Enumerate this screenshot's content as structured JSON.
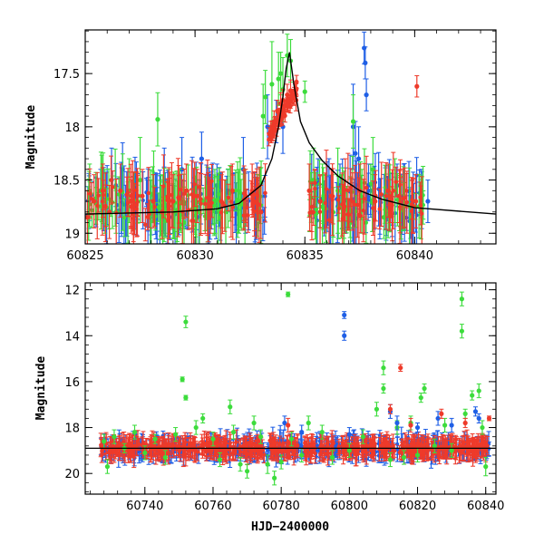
{
  "chart_data": [
    {
      "type": "scatter",
      "panel": "top",
      "title": "",
      "xlabel": "",
      "ylabel": "Magnitude",
      "xlim": [
        60825,
        60843.7
      ],
      "ylim": [
        19.1,
        17.09
      ],
      "y_inverted": true,
      "xticks": [
        60825,
        60830,
        60835,
        60840
      ],
      "yticks": [
        17.5,
        18,
        18.5,
        19
      ],
      "ytick_labels": [
        "17.5",
        "18",
        "18.5",
        "19"
      ],
      "grid": false,
      "series": [
        {
          "color": "#3cdc3c",
          "points": [
            [
              60825.2,
              18.6,
              0.25
            ],
            [
              60825.9,
              18.7,
              0.3
            ],
            [
              60826.4,
              18.8,
              0.2
            ],
            [
              60827.0,
              18.6,
              0.3
            ],
            [
              60827.5,
              18.5,
              0.4
            ],
            [
              60828.0,
              18.8,
              0.3
            ],
            [
              60828.3,
              17.93,
              0.25
            ],
            [
              60828.8,
              18.7,
              0.3
            ],
            [
              60829.5,
              18.9,
              0.2
            ],
            [
              60830.2,
              18.8,
              0.3
            ],
            [
              60830.9,
              18.7,
              0.3
            ],
            [
              60831.4,
              18.8,
              0.3
            ],
            [
              60832.0,
              18.7,
              0.3
            ],
            [
              60833.1,
              17.9,
              0.3
            ],
            [
              60833.2,
              17.72,
              0.25
            ],
            [
              60833.5,
              17.6,
              0.4
            ],
            [
              60833.8,
              17.55,
              0.25
            ],
            [
              60833.9,
              17.5,
              0.2
            ],
            [
              60834.0,
              17.65,
              0.3
            ],
            [
              60834.2,
              17.33,
              0.2
            ],
            [
              60834.35,
              17.38,
              0.2
            ],
            [
              60835.0,
              17.67,
              0.1
            ],
            [
              60835.4,
              18.5,
              0.3
            ],
            [
              60835.8,
              18.75,
              0.4
            ],
            [
              60836.5,
              18.6,
              0.4
            ],
            [
              60837.2,
              17.95,
              0.25
            ],
            [
              60837.6,
              18.7,
              0.3
            ],
            [
              60838.1,
              18.4,
              0.3
            ],
            [
              60838.6,
              18.85,
              0.2
            ],
            [
              60839.1,
              18.6,
              0.3
            ]
          ]
        },
        {
          "color": "#1f5fe6",
          "points": [
            [
              60825.7,
              18.6,
              0.2
            ],
            [
              60826.2,
              18.5,
              0.3
            ],
            [
              60826.7,
              18.4,
              0.25
            ],
            [
              60827.3,
              18.65,
              0.2
            ],
            [
              60828.6,
              18.5,
              0.3
            ],
            [
              60829.4,
              18.4,
              0.3
            ],
            [
              60830.3,
              18.3,
              0.25
            ],
            [
              60831.0,
              18.55,
              0.2
            ],
            [
              60831.5,
              18.6,
              0.2
            ],
            [
              60832.2,
              18.4,
              0.3
            ],
            [
              60832.8,
              18.7,
              0.2
            ],
            [
              60833.3,
              18.0,
              0.3
            ],
            [
              60833.7,
              17.95,
              0.2
            ],
            [
              60834.0,
              18.0,
              0.25
            ],
            [
              60835.6,
              18.5,
              0.2
            ],
            [
              60836.1,
              18.6,
              0.3
            ],
            [
              60836.6,
              18.55,
              0.2
            ],
            [
              60837.2,
              18.0,
              0.4
            ],
            [
              60837.3,
              18.25,
              0.3
            ],
            [
              60837.45,
              18.3,
              0.3
            ],
            [
              60837.7,
              17.26,
              0.15
            ],
            [
              60837.75,
              17.4,
              0.15
            ],
            [
              60837.8,
              17.7,
              0.15
            ],
            [
              60837.9,
              18.55,
              0.2
            ],
            [
              60838.0,
              18.6,
              0.25
            ],
            [
              60839.2,
              18.55,
              0.2
            ],
            [
              60839.5,
              18.65,
              0.3
            ],
            [
              60839.9,
              18.8,
              0.3
            ],
            [
              60840.3,
              18.6,
              0.2
            ],
            [
              60840.6,
              18.7,
              0.2
            ]
          ]
        },
        {
          "color": "#ee3a2a",
          "points": [
            [
              60825.1,
              18.85,
              0.25
            ],
            [
              60825.4,
              18.7,
              0.25
            ],
            [
              60825.8,
              18.6,
              0.25
            ],
            [
              60826.1,
              18.8,
              0.25
            ],
            [
              60826.6,
              18.6,
              0.25
            ],
            [
              60827.1,
              18.75,
              0.25
            ],
            [
              60827.6,
              18.65,
              0.25
            ],
            [
              60828.1,
              18.7,
              0.25
            ],
            [
              60828.5,
              18.8,
              0.25
            ],
            [
              60829.0,
              18.7,
              0.25
            ],
            [
              60829.6,
              18.6,
              0.25
            ],
            [
              60830.1,
              18.65,
              0.25
            ],
            [
              60830.7,
              18.75,
              0.25
            ],
            [
              60831.2,
              18.7,
              0.25
            ],
            [
              60831.7,
              18.6,
              0.25
            ],
            [
              60832.3,
              18.65,
              0.25
            ],
            [
              60832.6,
              18.6,
              0.25
            ],
            [
              60833.0,
              18.8,
              0.25
            ],
            [
              60833.45,
              18.05,
              0.1
            ],
            [
              60833.6,
              17.95,
              0.1
            ],
            [
              60833.75,
              17.85,
              0.1
            ],
            [
              60833.9,
              17.78,
              0.1
            ],
            [
              60834.0,
              17.75,
              0.1
            ],
            [
              60834.2,
              17.7,
              0.1
            ],
            [
              60834.35,
              17.66,
              0.1
            ],
            [
              60834.6,
              17.75,
              0.1
            ],
            [
              60835.2,
              18.6,
              0.25
            ],
            [
              60835.7,
              18.7,
              0.25
            ],
            [
              60836.2,
              18.65,
              0.25
            ],
            [
              60836.8,
              18.75,
              0.25
            ],
            [
              60837.5,
              18.6,
              0.25
            ],
            [
              60838.2,
              18.7,
              0.25
            ],
            [
              60838.8,
              18.6,
              0.25
            ],
            [
              60839.3,
              18.65,
              0.25
            ],
            [
              60840.05,
              18.7,
              0.25
            ],
            [
              60840.1,
              17.62,
              0.1
            ]
          ]
        }
      ],
      "model_curve": {
        "color": "#000000",
        "points": [
          [
            60825,
            18.82
          ],
          [
            60829,
            18.8
          ],
          [
            60831,
            18.77
          ],
          [
            60832,
            18.72
          ],
          [
            60833,
            18.55
          ],
          [
            60833.5,
            18.3
          ],
          [
            60833.8,
            18.0
          ],
          [
            60834.0,
            17.72
          ],
          [
            60834.15,
            17.45
          ],
          [
            60834.3,
            17.3
          ],
          [
            60834.5,
            17.6
          ],
          [
            60834.8,
            17.95
          ],
          [
            60835.2,
            18.15
          ],
          [
            60835.8,
            18.32
          ],
          [
            60836.5,
            18.46
          ],
          [
            60837.5,
            18.6
          ],
          [
            60838.5,
            18.68
          ],
          [
            60840,
            18.76
          ],
          [
            60843.7,
            18.82
          ]
        ]
      }
    },
    {
      "type": "scatter",
      "panel": "bottom",
      "title": "",
      "xlabel": "HJD−2400000",
      "ylabel": "Magnitude",
      "xlim": [
        60722.5,
        60843
      ],
      "ylim": [
        20.9,
        11.7
      ],
      "y_inverted": true,
      "xticks": [
        60740,
        60760,
        60780,
        60800,
        60820,
        60840
      ],
      "yticks": [
        12,
        14,
        16,
        18,
        20
      ],
      "ytick_labels": [
        "12",
        "14",
        "16",
        "18",
        "20"
      ],
      "grid": false,
      "baseline": {
        "y": 18.9,
        "color": "#000000"
      },
      "bands": [
        {
          "color": "#1f5fe6",
          "x_start": 60727,
          "x_end": 60841,
          "y": 18.9,
          "scatter": 0.4
        },
        {
          "color": "#ee3a2a",
          "x_start": 60727,
          "x_end": 60841,
          "y": 18.9,
          "scatter": 0.3
        }
      ],
      "series": [
        {
          "color": "#3cdc3c",
          "points": [
            [
              60728,
              18.6,
              0.3
            ],
            [
              60729,
              19.7,
              0.3
            ],
            [
              60731,
              18.4,
              0.3
            ],
            [
              60734,
              18.9,
              0.2
            ],
            [
              60737,
              18.2,
              0.3
            ],
            [
              60740,
              19.1,
              0.3
            ],
            [
              60743,
              18.5,
              0.2
            ],
            [
              60746,
              19.3,
              0.3
            ],
            [
              60749,
              18.3,
              0.3
            ],
            [
              60751,
              15.9,
              0.1
            ],
            [
              60752,
              13.4,
              0.25
            ],
            [
              60752,
              16.7,
              0.1
            ],
            [
              60755,
              18.0,
              0.3
            ],
            [
              60757,
              17.6,
              0.2
            ],
            [
              60760,
              18.5,
              0.3
            ],
            [
              60762,
              19.4,
              0.3
            ],
            [
              60765,
              17.1,
              0.3
            ],
            [
              60766,
              18.2,
              0.3
            ],
            [
              60768,
              19.6,
              0.3
            ],
            [
              60770,
              19.9,
              0.3
            ],
            [
              60772,
              17.8,
              0.3
            ],
            [
              60774,
              18.4,
              0.3
            ],
            [
              60776,
              19.6,
              0.4
            ],
            [
              60778,
              20.2,
              0.3
            ],
            [
              60780,
              19.5,
              0.3
            ],
            [
              60782,
              12.2,
              0.1
            ],
            [
              60783,
              18.5,
              0.3
            ],
            [
              60786,
              19.2,
              0.3
            ],
            [
              60788,
              17.8,
              0.3
            ],
            [
              60792,
              18.2,
              0.3
            ],
            [
              60795,
              19.3,
              0.3
            ],
            [
              60800,
              19.0,
              0.3
            ],
            [
              60804,
              18.4,
              0.3
            ],
            [
              60808,
              17.2,
              0.3
            ],
            [
              60810,
              15.4,
              0.3
            ],
            [
              60810,
              16.3,
              0.2
            ],
            [
              60812,
              19.4,
              0.3
            ],
            [
              60814,
              18.0,
              0.3
            ],
            [
              60816,
              19.3,
              0.3
            ],
            [
              60818,
              17.8,
              0.3
            ],
            [
              60820,
              19.2,
              0.3
            ],
            [
              60821,
              16.7,
              0.2
            ],
            [
              60822,
              16.3,
              0.2
            ],
            [
              60825,
              18.8,
              0.3
            ],
            [
              60828,
              17.9,
              0.3
            ],
            [
              60830,
              19.0,
              0.3
            ],
            [
              60833,
              12.4,
              0.3
            ],
            [
              60833,
              13.8,
              0.3
            ],
            [
              60834,
              17.4,
              0.2
            ],
            [
              60836,
              16.6,
              0.2
            ],
            [
              60838,
              16.4,
              0.3
            ],
            [
              60839,
              18.0,
              0.3
            ],
            [
              60840,
              19.7,
              0.4
            ]
          ]
        },
        {
          "color": "#1f5fe6",
          "points": [
            [
              60781,
              17.8,
              0.3
            ],
            [
              60786,
              18.2,
              0.3
            ],
            [
              60798.5,
              13.1,
              0.15
            ],
            [
              60798.5,
              14.0,
              0.2
            ],
            [
              60800,
              18.3,
              0.3
            ],
            [
              60812,
              17.3,
              0.3
            ],
            [
              60814,
              17.8,
              0.3
            ],
            [
              60820,
              18.0,
              0.2
            ],
            [
              60826,
              17.6,
              0.3
            ],
            [
              60830,
              17.9,
              0.3
            ],
            [
              60837,
              17.3,
              0.2
            ],
            [
              60838,
              17.6,
              0.2
            ]
          ]
        },
        {
          "color": "#ee3a2a",
          "points": [
            [
              60782,
              17.9,
              0.3
            ],
            [
              60812,
              17.2,
              0.2
            ],
            [
              60815,
              15.4,
              0.15
            ],
            [
              60818,
              17.9,
              0.3
            ],
            [
              60827,
              17.4,
              0.2
            ],
            [
              60834,
              17.8,
              0.2
            ],
            [
              60841,
              17.6,
              0.1
            ]
          ]
        }
      ]
    }
  ],
  "axis_labels": {
    "top_ylabel": "Magnitude",
    "bottom_ylabel": "Magnitude",
    "bottom_xlabel": "HJD−2400000"
  }
}
